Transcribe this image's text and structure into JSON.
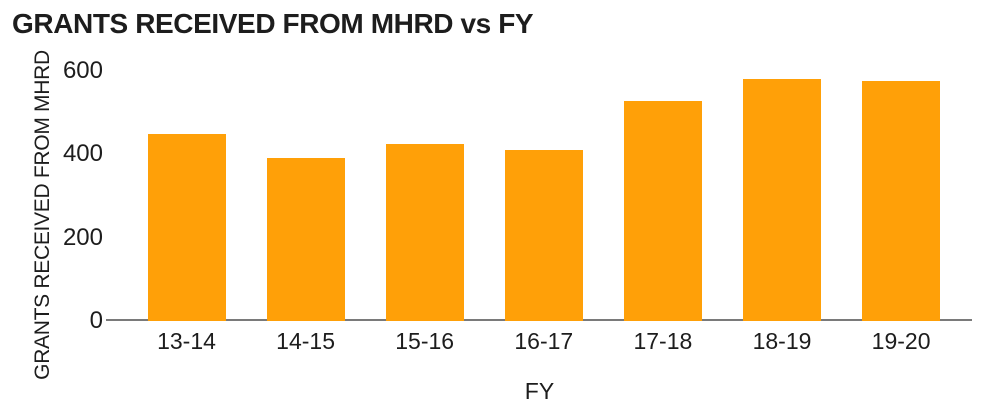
{
  "chart_data": {
    "type": "bar",
    "title": "GRANTS RECEIVED FROM MHRD vs FY",
    "xlabel": "FY",
    "ylabel": "GRANTS RECEIVED FROM MHRD",
    "categories": [
      "13-14",
      "14-15",
      "15-16",
      "16-17",
      "17-18",
      "18-19",
      "19-20"
    ],
    "values": [
      448,
      392,
      424,
      410,
      528,
      582,
      576
    ],
    "yticks": [
      0,
      200,
      400,
      600
    ],
    "ylim": [
      0,
      600
    ],
    "grid": false,
    "legend": "none",
    "bar_color": "#FFA008",
    "axis_color": "#7a7a7a",
    "text_color": "#1d1d1d",
    "background_color": "#ffffff"
  }
}
